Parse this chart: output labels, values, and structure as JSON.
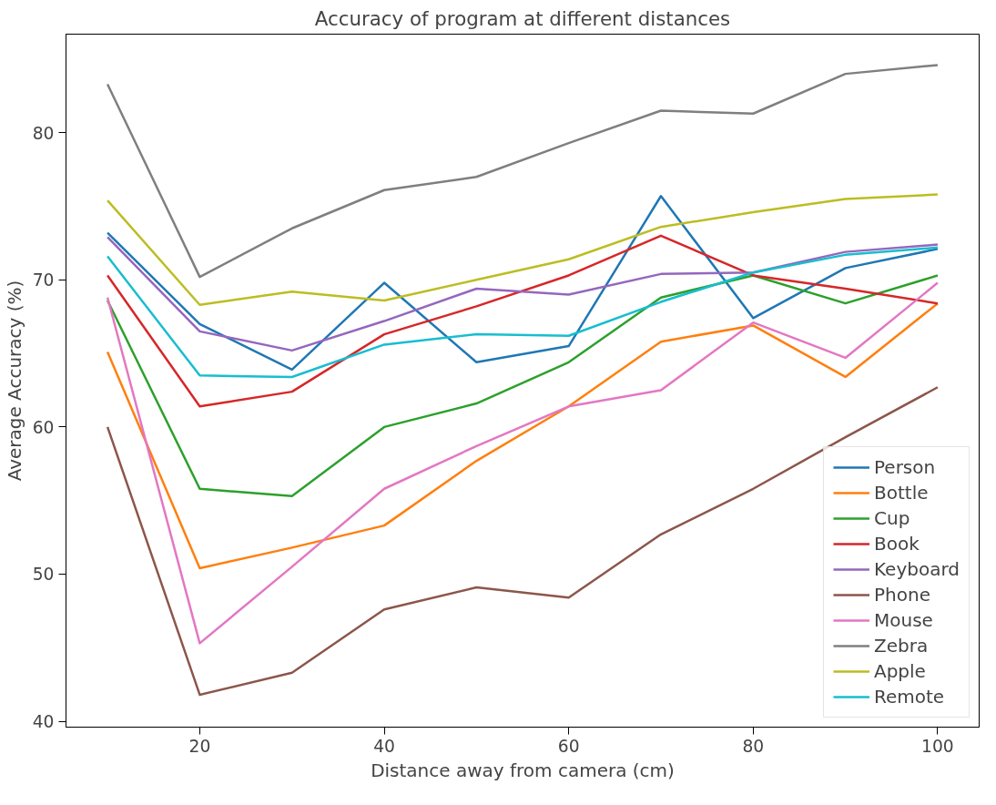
{
  "chart_data": {
    "type": "line",
    "title": "Accuracy of program at different distances",
    "xlabel": "Distance away from camera (cm)",
    "ylabel": "Average Accuracy (%)",
    "x": [
      10,
      20,
      30,
      40,
      50,
      60,
      70,
      80,
      90,
      100
    ],
    "xlim": [
      5.5,
      104.5
    ],
    "xticks": [
      20,
      40,
      60,
      80,
      100
    ],
    "ylim": [
      39.6,
      86.7
    ],
    "yticks": [
      40,
      50,
      60,
      70,
      80
    ],
    "grid": false,
    "legend": "bottom right",
    "marker": "none",
    "line_style": "solid",
    "series": [
      {
        "name": "Person",
        "color": "#1f77b4",
        "values": [
          73.2,
          67.0,
          63.9,
          69.8,
          64.4,
          65.5,
          75.7,
          67.4,
          70.8,
          72.1
        ]
      },
      {
        "name": "Bottle",
        "color": "#ff7f0e",
        "values": [
          65.1,
          50.4,
          51.8,
          53.3,
          57.7,
          61.4,
          65.8,
          66.9,
          63.4,
          68.4
        ]
      },
      {
        "name": "Cup",
        "color": "#2ca02c",
        "values": [
          68.6,
          55.8,
          55.3,
          60.0,
          61.6,
          64.4,
          68.8,
          70.3,
          68.4,
          70.3
        ]
      },
      {
        "name": "Book",
        "color": "#d62728",
        "values": [
          70.3,
          61.4,
          62.4,
          66.3,
          68.2,
          70.3,
          73.0,
          70.3,
          69.4,
          68.4
        ]
      },
      {
        "name": "Keyboard",
        "color": "#9467bd",
        "values": [
          72.9,
          66.5,
          65.2,
          67.2,
          69.4,
          69.0,
          70.4,
          70.5,
          71.9,
          72.4
        ]
      },
      {
        "name": "Phone",
        "color": "#8c564b",
        "values": [
          60.0,
          41.8,
          43.3,
          47.6,
          49.1,
          48.4,
          52.7,
          55.8,
          59.3,
          62.7
        ]
      },
      {
        "name": "Mouse",
        "color": "#e377c2",
        "values": [
          68.8,
          45.3,
          50.5,
          55.8,
          58.7,
          61.4,
          62.5,
          67.1,
          64.7,
          69.8
        ]
      },
      {
        "name": "Zebra",
        "color": "#7f7f7f",
        "values": [
          83.3,
          70.2,
          73.5,
          76.1,
          77.0,
          79.3,
          81.5,
          81.3,
          84.0,
          84.6
        ]
      },
      {
        "name": "Apple",
        "color": "#bcbd22",
        "values": [
          75.4,
          68.3,
          69.2,
          68.6,
          70.0,
          71.4,
          73.6,
          74.6,
          75.5,
          75.8
        ]
      },
      {
        "name": "Remote",
        "color": "#17becf",
        "values": [
          71.6,
          63.5,
          63.4,
          65.6,
          66.3,
          66.2,
          68.5,
          70.5,
          71.7,
          72.2
        ]
      }
    ]
  }
}
